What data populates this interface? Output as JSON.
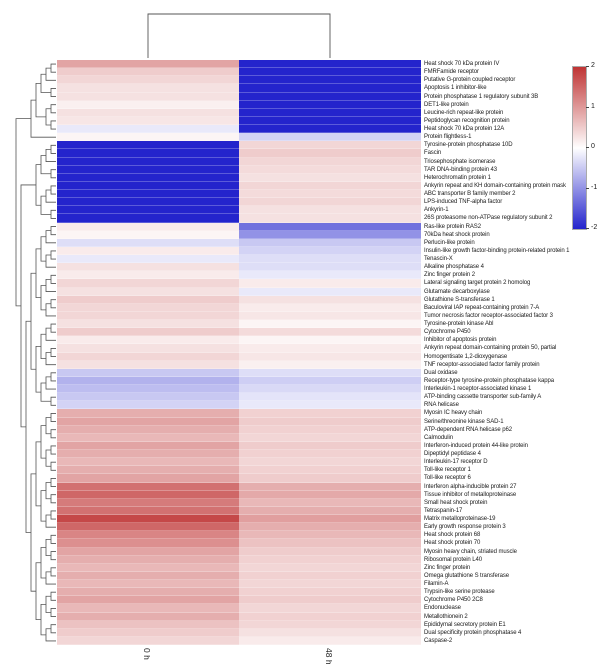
{
  "figure": {
    "background": "#ffffff"
  },
  "chart_data": {
    "type": "heatmap",
    "title": "",
    "columns": [
      "0 h",
      "48 h"
    ],
    "rows": [
      "Heat shock 70 kDa protein IV",
      "FMRFamide receptor",
      "Putative G-protein coupled receptor",
      "Apoptosis 1 inhibitor-like",
      "Protein phosphatase 1 regulatory subunit 3B",
      "DET1-like protein",
      "Leucine-rich repeat-like protein",
      "Peptidoglycan recognition protein",
      "Heat shock 70 kDa protein 12A",
      "Protein flightless-1",
      "Tyrosine-protein phosphatase 10D",
      "Fascin",
      "Triosephosphate isomerase",
      "TAR DNA-binding protein 43",
      "Heterochromatin protein 1",
      "Ankyrin repeat and KH domain-containing protein mask",
      "ABC transporter B family member 2",
      "LPS-induced TNF-alpha factor",
      "Ankyrin-1",
      "26S proteasome non-ATPase regulatory subunit 2",
      "Ras-like protein RAS2",
      "70kDa heat shock protein",
      "Perlucin-like protein",
      "Insulin-like growth factor-binding protein-related protein 1",
      "Tenascin-X",
      "Alkaline phosphatase 4",
      "Zinc finger protein 2",
      "Lateral signaling target protein 2 homolog",
      "Glutamate decarboxylase",
      "Glutathione S-transferase 1",
      "Baculoviral IAP repeat-containing protein 7-A",
      "Tumor necrosis factor receptor-associated factor 3",
      "Tyrosine-protein kinase Abl",
      "Cytochrome P450",
      "Inhibitor of apoptosis protein",
      "Ankyrin repeat domain-containing protein 50, partial",
      "Homogentisate 1,2-dioxygenase",
      "TNF receptor-associated factor family protein",
      "Dual oxidase",
      "Receptor-type tyrosine-protein phosphatase kappa",
      "Interleukin-1 receptor-associated kinase 1",
      "ATP-binding cassette transporter sub-family A",
      "RNA helicase",
      "Myosin IC heavy chain",
      "Serine/threonine kinase SAD-1",
      "ATP-dependent RNA helicase p62",
      "Calmodulin",
      "Interferon-induced protein 44-like protein",
      "Dipeptidyl peptidase 4",
      "Interleukin-17 receptor D",
      "Toll-like receptor 1",
      "Toll-like receptor 6",
      "Interferon alpha-inducible protein 27",
      "Tissue inhibitor of metalloproteinase",
      "Small heat shock protein",
      "Tetraspanin-17",
      "Matrix metalloproteinase-19",
      "Early growth response protein 3",
      "Heat shock protein 68",
      "Heat shock protein 70",
      "Myosin heavy chain, striated muscle",
      "Ribosomal protein L40",
      "Zinc finger protein",
      "Omega glutathione S transferase",
      "Filamin-A",
      "Trypsin-like serine protease",
      "Cytochrome P450 2C8",
      "Endonuclease",
      "Metallothionein 2",
      "Epididymal secretory protein E1",
      "Dual specificity protein phosphatase 4",
      "Caspase-2"
    ],
    "series": [
      {
        "name": "0 h",
        "values": [
          0.9,
          0.5,
          0.4,
          0.3,
          0.3,
          0.15,
          0.3,
          0.25,
          -0.2,
          0.1,
          -2,
          -2,
          -2,
          -2,
          -2,
          -2,
          -2,
          -2,
          -2,
          -2,
          0.2,
          0.1,
          -0.3,
          0.2,
          -0.2,
          0.3,
          0.2,
          0.4,
          0.3,
          0.5,
          0.4,
          0.4,
          0.3,
          0.5,
          0.2,
          0.3,
          0.4,
          0.3,
          -0.5,
          -0.7,
          -0.6,
          -0.5,
          -0.4,
          0.8,
          0.9,
          0.8,
          0.7,
          0.9,
          0.8,
          0.7,
          0.8,
          0.9,
          1.4,
          1.5,
          1.3,
          1.4,
          1.8,
          1.5,
          1.2,
          1.1,
          0.9,
          0.8,
          0.7,
          0.8,
          0.7,
          0.8,
          0.9,
          0.7,
          0.8,
          0.6,
          0.5,
          0.4
        ]
      },
      {
        "name": "48 h",
        "values": [
          -2,
          -2,
          -2,
          -2,
          -2,
          -2,
          -2,
          -2,
          -2,
          -0.4,
          0.4,
          0.5,
          0.4,
          0.35,
          0.3,
          0.4,
          0.35,
          0.4,
          0.3,
          0.3,
          -1.3,
          -1.0,
          -0.5,
          -0.4,
          -0.3,
          -0.3,
          -0.2,
          0.2,
          -0.2,
          0.3,
          0.2,
          0.25,
          0.1,
          0.35,
          0.1,
          0.2,
          0.25,
          0.15,
          -0.3,
          -0.45,
          -0.35,
          -0.25,
          -0.2,
          0.45,
          0.5,
          0.45,
          0.4,
          0.5,
          0.45,
          0.4,
          0.45,
          0.5,
          0.8,
          0.85,
          0.7,
          0.8,
          0.95,
          0.8,
          0.7,
          0.6,
          0.5,
          0.45,
          0.4,
          0.45,
          0.4,
          0.45,
          0.5,
          0.4,
          0.45,
          0.4,
          0.3,
          0.2
        ]
      }
    ],
    "colorscale": {
      "min": -2,
      "max": 2,
      "min_color": "#2424cc",
      "mid_color": "#ffffff",
      "max_color": "#bf3434"
    },
    "legend": {
      "ticks": [
        2,
        1,
        0,
        -1,
        -2
      ]
    },
    "layout_hints": {
      "row_dendrogram": "left",
      "column_dendrogram": "top",
      "legend_position": "right",
      "grid": "off"
    }
  }
}
